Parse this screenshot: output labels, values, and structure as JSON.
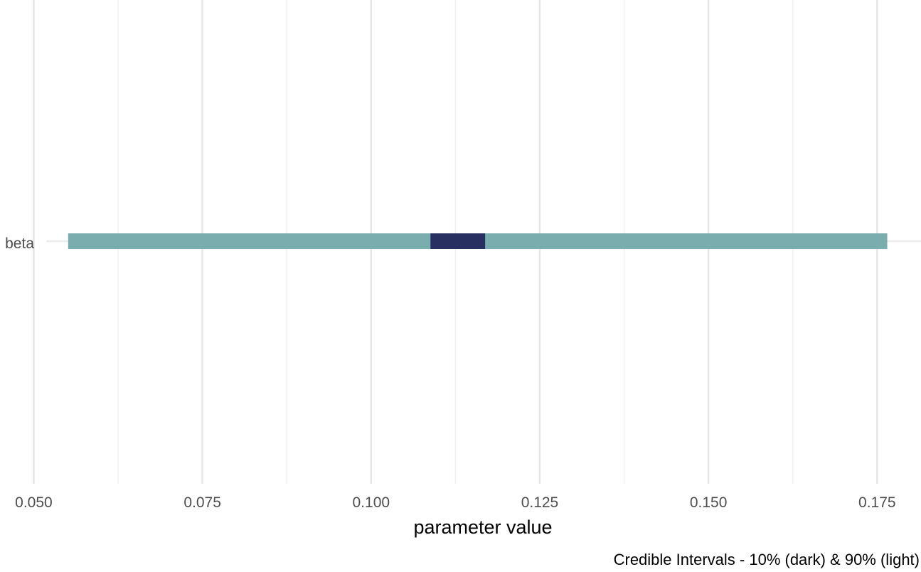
{
  "chart_data": {
    "type": "interval",
    "parameter_label": "beta",
    "xlabel": "parameter value",
    "caption": "Credible Intervals - 10% (dark) & 90% (light)",
    "x_ticks": [
      "0.050",
      "0.075",
      "0.100",
      "0.125",
      "0.150",
      "0.175"
    ],
    "x_tick_values": [
      0.05,
      0.075,
      0.1,
      0.125,
      0.15,
      0.175
    ],
    "x_minor_values": [
      0.0625,
      0.0875,
      0.1125,
      0.1375,
      0.1625
    ],
    "xlim": [
      0.045,
      0.1815
    ],
    "intervals": [
      {
        "name": "90% (light)",
        "low": 0.0551,
        "high": 0.1765,
        "color": "#7aaeae"
      },
      {
        "name": "10% (dark)",
        "low": 0.1088,
        "high": 0.1169,
        "color": "#283061"
      }
    ],
    "grid": true
  }
}
